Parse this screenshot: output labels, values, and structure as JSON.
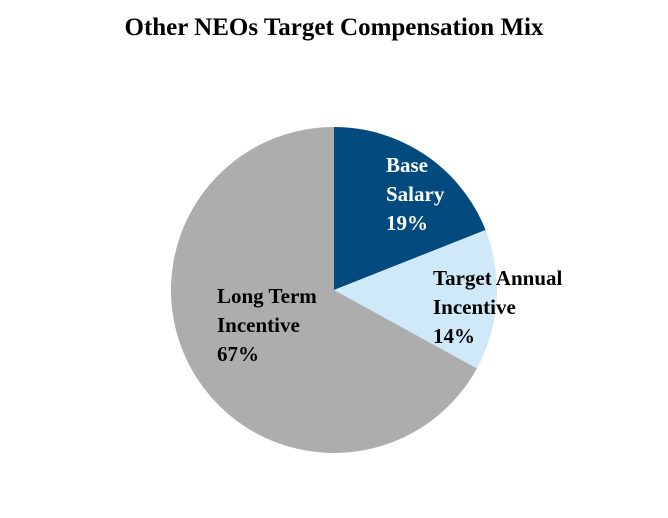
{
  "chart_data": {
    "type": "pie",
    "title": "Other NEOs Target Compensation Mix",
    "slices": [
      {
        "label_lines": [
          "Base",
          "Salary"
        ],
        "value": 19,
        "value_label": "19%",
        "color": "#034a7e",
        "label_color": "#ffffff"
      },
      {
        "label_lines": [
          "Target Annual",
          "Incentive"
        ],
        "value": 14,
        "value_label": "14%",
        "color": "#cfe9f9",
        "label_color": "#000000"
      },
      {
        "label_lines": [
          "Long Term",
          "Incentive"
        ],
        "value": 67,
        "value_label": "67%",
        "color": "#adadad",
        "label_color": "#000000"
      }
    ],
    "start_angle_deg": 0,
    "direction": "clockwise",
    "legend": "none"
  }
}
